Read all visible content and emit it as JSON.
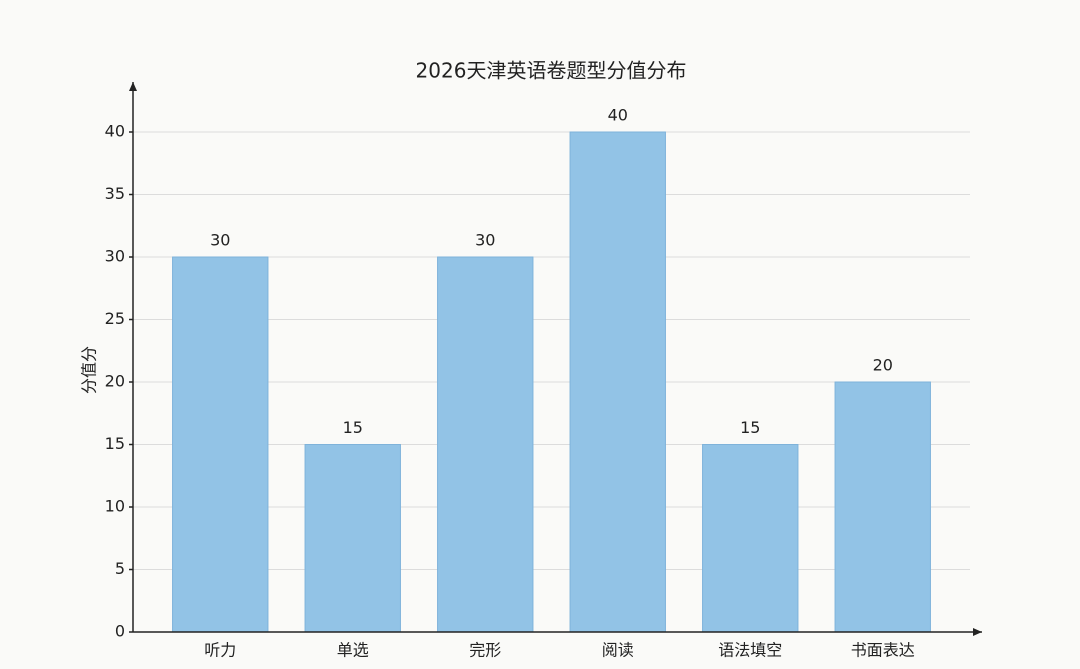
{
  "chart_data": {
    "type": "bar",
    "title": "2026天津英语卷题型分值分布",
    "y_label": "分值分",
    "categories": [
      "听力",
      "单选",
      "完形",
      "阅读",
      "语法填空",
      "书面表达"
    ],
    "values": [
      30,
      15,
      30,
      40,
      15,
      20
    ],
    "color": "#92c3e6",
    "ylim": [
      0,
      44
    ],
    "yticks": [
      0,
      5,
      10,
      15,
      20,
      25,
      30,
      35,
      40
    ],
    "grid": true
  }
}
